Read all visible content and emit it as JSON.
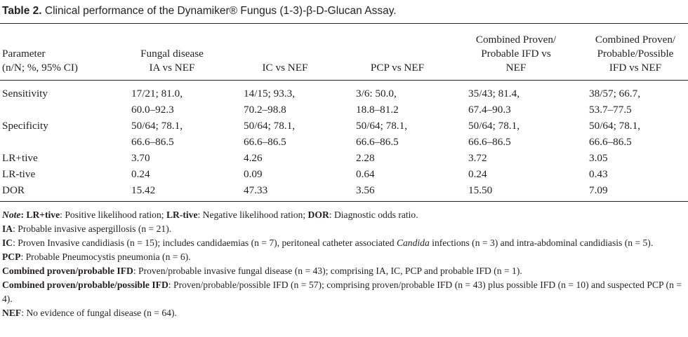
{
  "caption": {
    "label": "Table 2.",
    "text": "Clinical performance of the Dynamiker® Fungus (1-3)-β-D-Glucan Assay."
  },
  "header": {
    "parameter": [
      "Parameter",
      "(n/N; %, 95% CI)"
    ],
    "col1": [
      "Fungal disease",
      "IA vs NEF"
    ],
    "col2": [
      "IC vs NEF"
    ],
    "col3": [
      "PCP vs NEF"
    ],
    "col4": [
      "Combined Proven/",
      "Probable IFD vs",
      "NEF"
    ],
    "col5": [
      "Combined Proven/",
      "Probable/Possible",
      "IFD vs NEF"
    ]
  },
  "rows": [
    {
      "param": "Sensitivity",
      "values": [
        [
          "17/21; 81.0,",
          "60.0–92.3"
        ],
        [
          "14/15; 93.3,",
          "70.2–98.8"
        ],
        [
          "3/6: 50.0,",
          "18.8–81.2"
        ],
        [
          "35/43; 81.4,",
          "67.4–90.3"
        ],
        [
          "38/57; 66.7,",
          "53.7–77.5"
        ]
      ]
    },
    {
      "param": "Specificity",
      "values": [
        [
          "50/64; 78.1,",
          "66.6–86.5"
        ],
        [
          "50/64; 78.1,",
          "66.6–86.5"
        ],
        [
          "50/64; 78.1,",
          "66.6–86.5"
        ],
        [
          "50/64; 78.1,",
          "66.6–86.5"
        ],
        [
          "50/64; 78.1,",
          "66.6–86.5"
        ]
      ]
    },
    {
      "param": "LR+tive",
      "values": [
        [
          "3.70"
        ],
        [
          "4.26"
        ],
        [
          "2.28"
        ],
        [
          "3.72"
        ],
        [
          "3.05"
        ]
      ]
    },
    {
      "param": "LR-tive",
      "values": [
        [
          "0.24"
        ],
        [
          "0.09"
        ],
        [
          "0.64"
        ],
        [
          "0.24"
        ],
        [
          "0.43"
        ]
      ]
    },
    {
      "param": "DOR",
      "values": [
        [
          "15.42"
        ],
        [
          "47.33"
        ],
        [
          "3.56"
        ],
        [
          "15.50"
        ],
        [
          "7.09"
        ]
      ]
    }
  ],
  "notes": {
    "n1": {
      "note_label": "Note",
      "lrpos_label": "LR+tive",
      "lrpos_text": ": Positive likelihood ration;",
      "lrneg_label": "LR-tive",
      "lrneg_text": ": Negative likelihood ration;",
      "dor_label": "DOR",
      "dor_text": ": Diagnostic odds ratio."
    },
    "n2": {
      "label": "IA",
      "text": ": Probable invasive aspergillosis (n = 21)."
    },
    "n3": {
      "label": "IC",
      "text_a": ": Proven Invasive candidiasis (n = 15); includes candidaemias (n = 7), peritoneal catheter associated ",
      "italic": "Candida",
      "text_b": " infections (n = 3) and intra-abdominal candidiasis (n = 5)."
    },
    "n4": {
      "label": "PCP",
      "text": ": Probable Pneumocystis pneumonia (n = 6)."
    },
    "n5": {
      "label": "Combined proven/probable IFD",
      "text": ": Proven/probable invasive fungal disease (n = 43); comprising IA, IC, PCP and probable IFD (n = 1)."
    },
    "n6": {
      "label": "Combined proven/probable/possible IFD",
      "text": ": Proven/probable/possible IFD (n = 57); comprising proven/probable IFD (n = 43) plus possible IFD (n = 10) and suspected PCP (n = 4)."
    },
    "n7": {
      "label": "NEF",
      "text": ": No evidence of fungal disease (n = 64)."
    }
  }
}
